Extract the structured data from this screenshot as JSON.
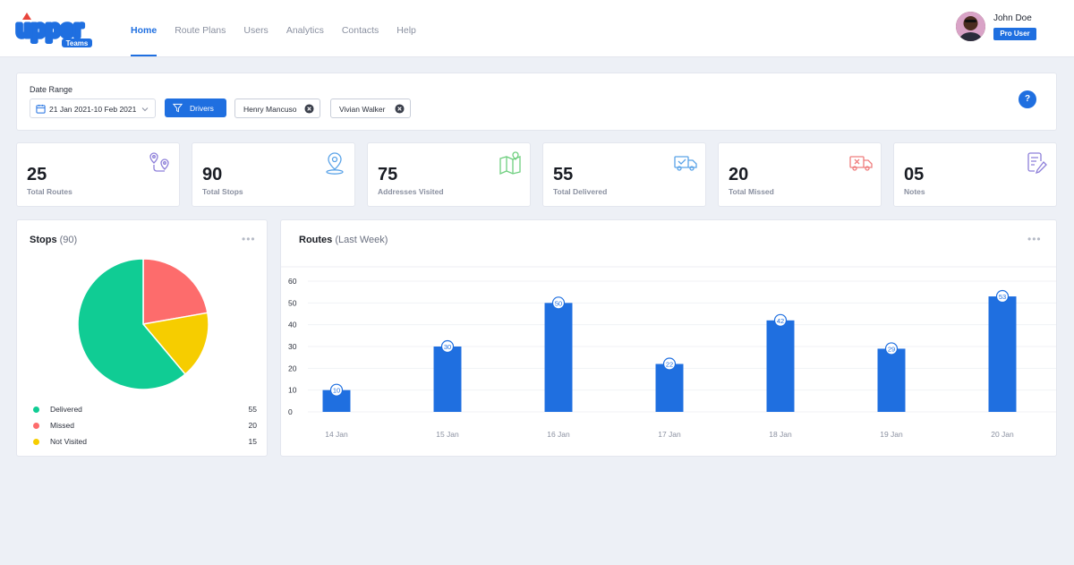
{
  "brand": {
    "name": "upper",
    "sub": "Teams"
  },
  "nav": {
    "items": [
      {
        "label": "Home",
        "active": true
      },
      {
        "label": "Route Plans",
        "active": false
      },
      {
        "label": "Users",
        "active": false
      },
      {
        "label": "Analytics",
        "active": false
      },
      {
        "label": "Contacts",
        "active": false
      },
      {
        "label": "Help",
        "active": false
      }
    ]
  },
  "user": {
    "name": "John Doe",
    "badge": "Pro User"
  },
  "filters": {
    "date_label": "Date Range",
    "date_value": "21 Jan 2021-10 Feb 2021",
    "drivers_label": "Drivers",
    "chips": [
      "Henry Mancuso",
      "Vivian Walker"
    ],
    "help": "?"
  },
  "stats": [
    {
      "value": "25",
      "label": "Total Routes",
      "icon": "route-icon",
      "color": "#8d7fd9"
    },
    {
      "value": "90",
      "label": "Total Stops",
      "icon": "location-pin-icon",
      "color": "#5aa3e8"
    },
    {
      "value": "75",
      "label": "Addresses Visited",
      "icon": "map-icon",
      "color": "#6fcf7f"
    },
    {
      "value": "55",
      "label": "Total Delivered",
      "icon": "delivery-truck-icon",
      "color": "#5aa3e8"
    },
    {
      "value": "20",
      "label": "Total Missed",
      "icon": "missed-truck-icon",
      "color": "#ef7d7d"
    },
    {
      "value": "05",
      "label": "Notes",
      "icon": "notes-icon",
      "color": "#8d7fd9"
    }
  ],
  "stops": {
    "title": "Stops",
    "count": "(90)",
    "menu": "•••",
    "legend": [
      {
        "name": "Delivered",
        "value": 55,
        "color": "#10cc94"
      },
      {
        "name": "Missed",
        "value": 20,
        "color": "#fd6c6c"
      },
      {
        "name": "Not Visited",
        "value": 15,
        "color": "#f6cd00"
      }
    ]
  },
  "routes": {
    "title": "Routes",
    "subtitle": "(Last Week)",
    "menu": "•••"
  },
  "chart_data": [
    {
      "type": "pie",
      "title": "Stops (90)",
      "categories": [
        "Delivered",
        "Missed",
        "Not Visited"
      ],
      "values": [
        55,
        20,
        15
      ],
      "colors": [
        "#10cc94",
        "#fd6c6c",
        "#f6cd00"
      ]
    },
    {
      "type": "bar",
      "title": "Routes (Last Week)",
      "categories": [
        "14 Jan",
        "15 Jan",
        "16 Jan",
        "17 Jan",
        "18 Jan",
        "19 Jan",
        "20 Jan"
      ],
      "values": [
        10,
        30,
        50,
        22,
        42,
        29,
        53
      ],
      "ylim": [
        0,
        60
      ],
      "yticks": [
        0,
        10,
        20,
        30,
        40,
        50,
        60
      ],
      "bar_color": "#1f6fe0",
      "xlabel": "",
      "ylabel": "",
      "grid": true
    }
  ]
}
